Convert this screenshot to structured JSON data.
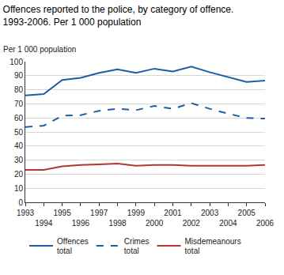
{
  "chart_data": {
    "type": "line",
    "title": "Offences reported to the police, by category of offence.\n1993-2006. Per 1 000 population",
    "ylabel": "Per 1 000 population",
    "x": [
      1993,
      1994,
      1995,
      1996,
      1997,
      1998,
      1999,
      2000,
      2001,
      2002,
      2003,
      2004,
      2005,
      2006
    ],
    "xlim": [
      1993,
      2006
    ],
    "xticks": [
      1993,
      1994,
      1995,
      1996,
      1997,
      1998,
      1999,
      2000,
      2001,
      2002,
      2003,
      2004,
      2005,
      2006
    ],
    "ylim": [
      0,
      100
    ],
    "yticks": [
      0,
      10,
      20,
      30,
      40,
      50,
      60,
      70,
      80,
      90,
      100
    ],
    "grid": true,
    "legend": "bottom",
    "series": [
      {
        "name": "Offences total",
        "color": "#1f5ca8",
        "line_style": "solid",
        "values": [
          76,
          77,
          87,
          88.5,
          92,
          94.5,
          92,
          95,
          93,
          96.5,
          92.5,
          89,
          85.5,
          86.5
        ]
      },
      {
        "name": "Crimes total",
        "color": "#1f5ca8",
        "line_style": "dash",
        "values": [
          53.5,
          54.5,
          61.5,
          62,
          65,
          66.5,
          65.5,
          68.5,
          66.5,
          70.5,
          66.5,
          63,
          60,
          59.5
        ]
      },
      {
        "name": "Misdemeanours total",
        "color": "#b23a2c",
        "line_style": "solid",
        "values": [
          23,
          23,
          25.5,
          26.5,
          27,
          27.5,
          26,
          26.5,
          26.5,
          26,
          26,
          26,
          26,
          26.5
        ]
      }
    ]
  }
}
